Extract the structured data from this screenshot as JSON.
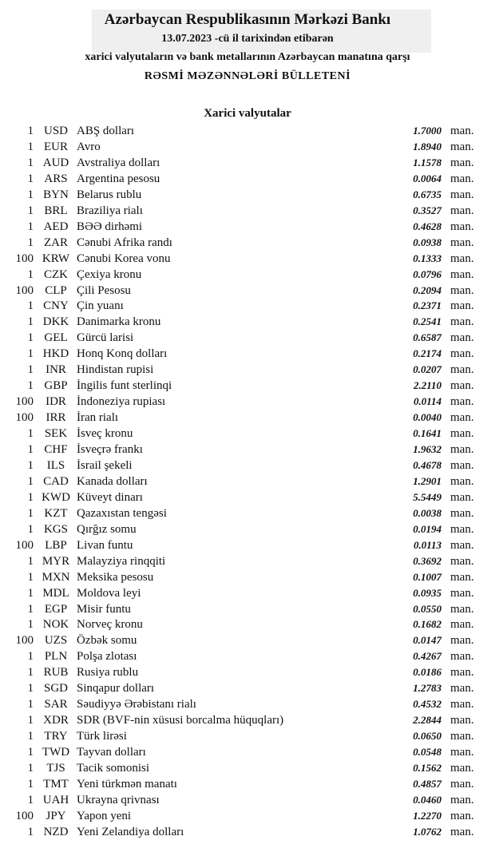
{
  "header": {
    "title": "Azərbaycan Respublikasının Mərkəzi Bankı",
    "date": "13.07.2023  -cü il tarixindən etibarən",
    "subtitle": "xarici valyutaların və bank metallarının Azərbaycan manatına qarşı",
    "bulletin": "RƏSMİ MƏZƏNNƏLƏRİ BÜLLETENİ"
  },
  "section": {
    "title": "Xarici valyutalar",
    "unit": "man.",
    "rows": [
      [
        1,
        "USD",
        "ABŞ dolları",
        "1.7000"
      ],
      [
        1,
        "EUR",
        "Avro",
        "1.8940"
      ],
      [
        1,
        "AUD",
        "Avstraliya dolları",
        "1.1578"
      ],
      [
        1,
        "ARS",
        "Argentina pesosu",
        "0.0064"
      ],
      [
        1,
        "BYN",
        "Belarus rublu",
        "0.6735"
      ],
      [
        1,
        "BRL",
        "Braziliya rialı",
        "0.3527"
      ],
      [
        1,
        "AED",
        "BƏƏ dirhəmi",
        "0.4628"
      ],
      [
        1,
        "ZAR",
        "Cənubi Afrika randı",
        "0.0938"
      ],
      [
        100,
        "KRW",
        "Cənubi Korea vonu",
        "0.1333"
      ],
      [
        1,
        "CZK",
        "Çexiya kronu",
        "0.0796"
      ],
      [
        100,
        "CLP",
        "Çili Pesosu",
        "0.2094"
      ],
      [
        1,
        "CNY",
        "Çin yuanı",
        "0.2371"
      ],
      [
        1,
        "DKK",
        "Danimarka kronu",
        "0.2541"
      ],
      [
        1,
        "GEL",
        "Gürcü larisi",
        "0.6587"
      ],
      [
        1,
        "HKD",
        "Honq Konq dolları",
        "0.2174"
      ],
      [
        1,
        "INR",
        "Hindistan rupisi",
        "0.0207"
      ],
      [
        1,
        "GBP",
        "İngilis funt sterlinqi",
        "2.2110"
      ],
      [
        100,
        "IDR",
        "İndoneziya rupiası",
        "0.0114"
      ],
      [
        100,
        "IRR",
        "İran rialı",
        "0.0040"
      ],
      [
        1,
        "SEK",
        "İsveç kronu",
        "0.1641"
      ],
      [
        1,
        "CHF",
        "İsveçrə frankı",
        "1.9632"
      ],
      [
        1,
        "ILS",
        "İsrail şekeli",
        "0.4678"
      ],
      [
        1,
        "CAD",
        "Kanada dolları",
        "1.2901"
      ],
      [
        1,
        "KWD",
        "Küveyt dinarı",
        "5.5449"
      ],
      [
        1,
        "KZT",
        "Qazaxıstan tengəsi",
        "0.0038"
      ],
      [
        1,
        "KGS",
        "Qırğız somu",
        "0.0194"
      ],
      [
        100,
        "LBP",
        "Livan funtu",
        "0.0113"
      ],
      [
        1,
        "MYR",
        "Malayziya rinqqiti",
        "0.3692"
      ],
      [
        1,
        "MXN",
        "Meksika pesosu",
        "0.1007"
      ],
      [
        1,
        "MDL",
        "Moldova leyi",
        "0.0935"
      ],
      [
        1,
        "EGP",
        "Misir funtu",
        "0.0550"
      ],
      [
        1,
        "NOK",
        "Norveç kronu",
        "0.1682"
      ],
      [
        100,
        "UZS",
        "Özbək somu",
        "0.0147"
      ],
      [
        1,
        "PLN",
        "Polşa zlotası",
        "0.4267"
      ],
      [
        1,
        "RUB",
        "Rusiya rublu",
        "0.0186"
      ],
      [
        1,
        "SGD",
        "Sinqapur dolları",
        "1.2783"
      ],
      [
        1,
        "SAR",
        "Səudiyyə Ərəbistanı rialı",
        "0.4532"
      ],
      [
        1,
        "XDR",
        "SDR (BVF-nin xüsusi borcalma hüquqları)",
        "2.2844"
      ],
      [
        1,
        "TRY",
        "Türk lirəsi",
        "0.0650"
      ],
      [
        1,
        "TWD",
        "Tayvan dolları",
        "0.0548"
      ],
      [
        1,
        "TJS",
        "Tacik somonisi",
        "0.1562"
      ],
      [
        1,
        "TMT",
        "Yeni türkmən manatı",
        "0.4857"
      ],
      [
        1,
        "UAH",
        "Ukrayna qrivnası",
        "0.0460"
      ],
      [
        100,
        "JPY",
        "Yapon yeni",
        "1.2270"
      ],
      [
        1,
        "NZD",
        "Yeni Zelandiya dolları",
        "1.0762"
      ]
    ]
  }
}
